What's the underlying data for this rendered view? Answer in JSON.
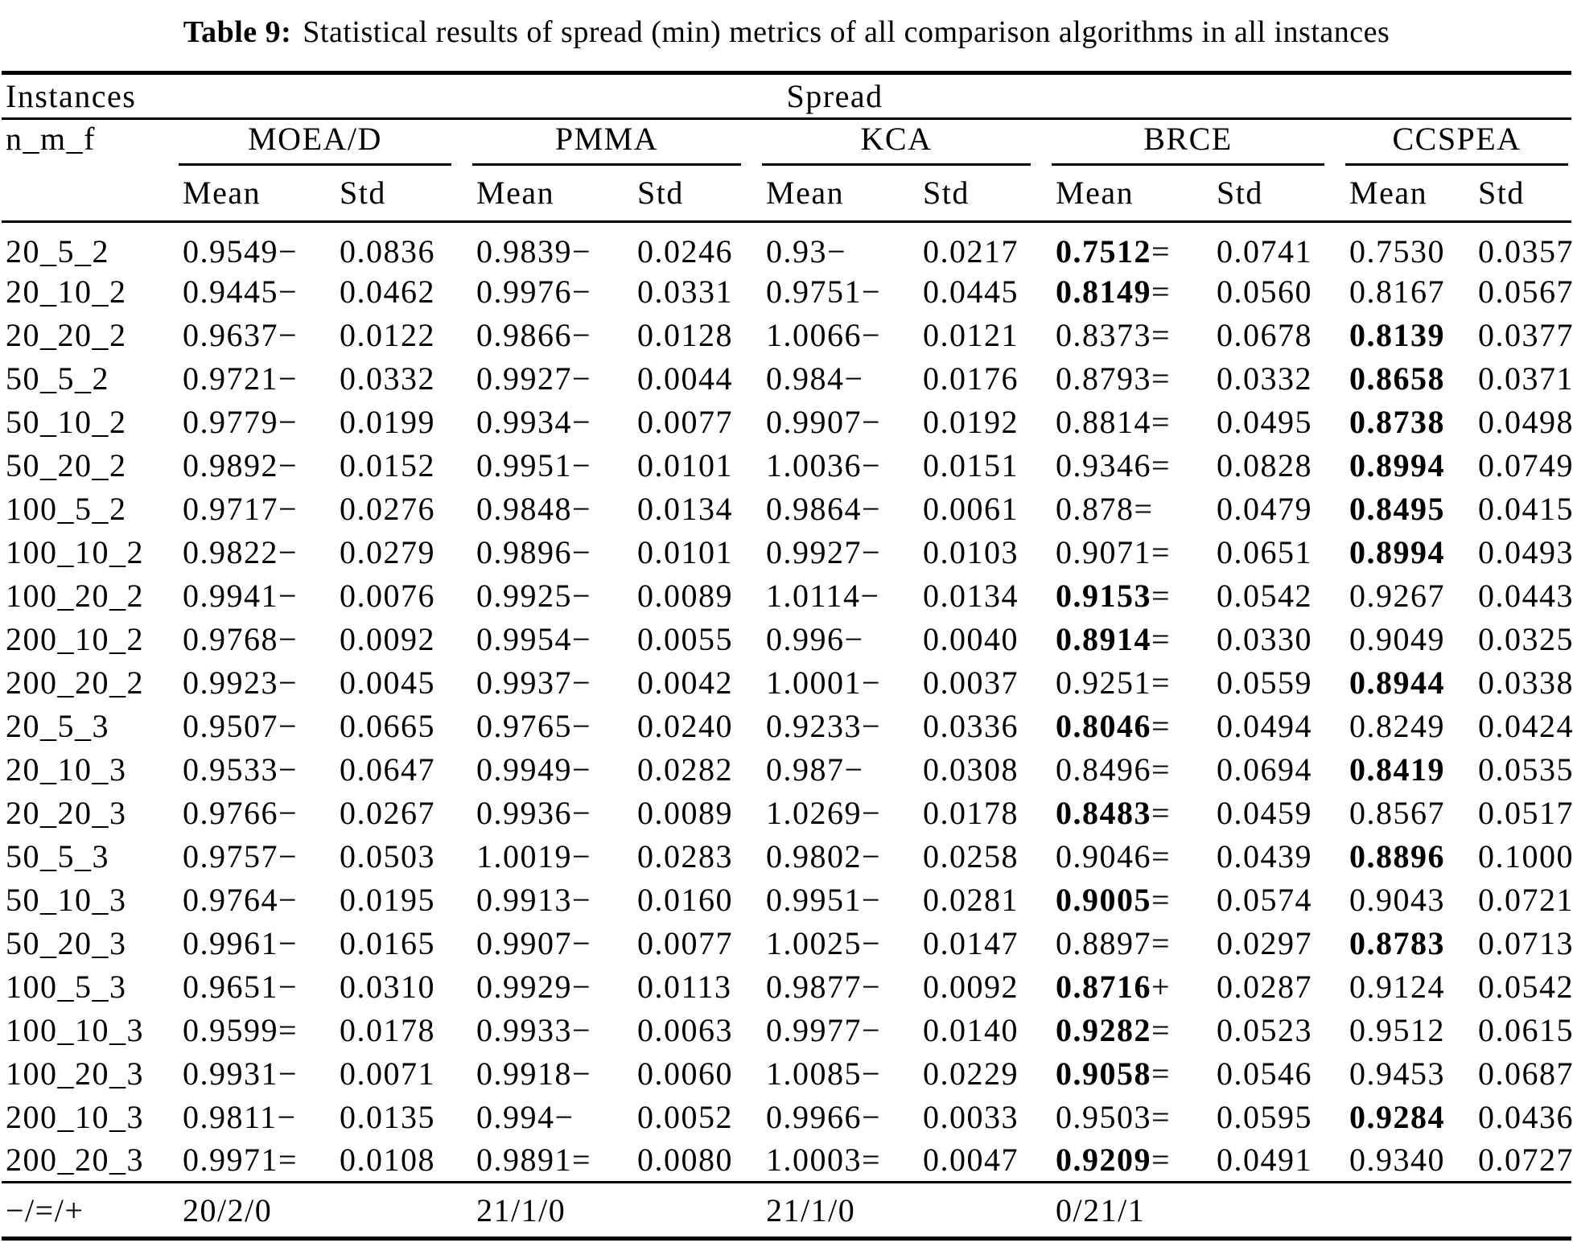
{
  "title": {
    "label": "Table 9:",
    "text": "Statistical results of spread (min) metrics of all comparison algorithms in all instances"
  },
  "table": {
    "group_header": "Spread",
    "instances_header": "Instances",
    "instances_subheader": "n_m_f",
    "algorithms": [
      "MOEA/D",
      "PMMA",
      "KCA",
      "BRCE",
      "CCSPEA"
    ],
    "measure_headers": [
      "Mean",
      "Std"
    ],
    "rows": [
      {
        "instance": "20_5_2",
        "cells": [
          {
            "mean": "0.9549",
            "sign": "−",
            "std": "0.0836",
            "bold": false
          },
          {
            "mean": "0.9839",
            "sign": "−",
            "std": "0.0246",
            "bold": false
          },
          {
            "mean": "0.93",
            "sign": "−",
            "std": "0.0217",
            "bold": false
          },
          {
            "mean": "0.7512",
            "sign": "=",
            "std": "0.0741",
            "bold": true
          },
          {
            "mean": "0.7530",
            "sign": "",
            "std": "0.0357",
            "bold": false
          }
        ]
      },
      {
        "instance": "20_10_2",
        "cells": [
          {
            "mean": "0.9445",
            "sign": "−",
            "std": "0.0462",
            "bold": false
          },
          {
            "mean": "0.9976",
            "sign": "−",
            "std": "0.0331",
            "bold": false
          },
          {
            "mean": "0.9751",
            "sign": "−",
            "std": "0.0445",
            "bold": false
          },
          {
            "mean": "0.8149",
            "sign": "=",
            "std": "0.0560",
            "bold": true
          },
          {
            "mean": "0.8167",
            "sign": "",
            "std": "0.0567",
            "bold": false
          }
        ]
      },
      {
        "instance": "20_20_2",
        "cells": [
          {
            "mean": "0.9637",
            "sign": "−",
            "std": "0.0122",
            "bold": false
          },
          {
            "mean": "0.9866",
            "sign": "−",
            "std": "0.0128",
            "bold": false
          },
          {
            "mean": "1.0066",
            "sign": "−",
            "std": "0.0121",
            "bold": false
          },
          {
            "mean": "0.8373",
            "sign": "=",
            "std": "0.0678",
            "bold": false
          },
          {
            "mean": "0.8139",
            "sign": "",
            "std": "0.0377",
            "bold": true
          }
        ]
      },
      {
        "instance": "50_5_2",
        "cells": [
          {
            "mean": "0.9721",
            "sign": "−",
            "std": "0.0332",
            "bold": false
          },
          {
            "mean": "0.9927",
            "sign": "−",
            "std": "0.0044",
            "bold": false
          },
          {
            "mean": "0.984",
            "sign": "−",
            "std": "0.0176",
            "bold": false
          },
          {
            "mean": "0.8793",
            "sign": "=",
            "std": "0.0332",
            "bold": false
          },
          {
            "mean": "0.8658",
            "sign": "",
            "std": "0.0371",
            "bold": true
          }
        ]
      },
      {
        "instance": "50_10_2",
        "cells": [
          {
            "mean": "0.9779",
            "sign": "−",
            "std": "0.0199",
            "bold": false
          },
          {
            "mean": "0.9934",
            "sign": "−",
            "std": "0.0077",
            "bold": false
          },
          {
            "mean": "0.9907",
            "sign": "−",
            "std": "0.0192",
            "bold": false
          },
          {
            "mean": "0.8814",
            "sign": "=",
            "std": "0.0495",
            "bold": false
          },
          {
            "mean": "0.8738",
            "sign": "",
            "std": "0.0498",
            "bold": true
          }
        ]
      },
      {
        "instance": "50_20_2",
        "cells": [
          {
            "mean": "0.9892",
            "sign": "−",
            "std": "0.0152",
            "bold": false
          },
          {
            "mean": "0.9951",
            "sign": "−",
            "std": "0.0101",
            "bold": false
          },
          {
            "mean": "1.0036",
            "sign": "−",
            "std": "0.0151",
            "bold": false
          },
          {
            "mean": "0.9346",
            "sign": "=",
            "std": "0.0828",
            "bold": false
          },
          {
            "mean": "0.8994",
            "sign": "",
            "std": "0.0749",
            "bold": true
          }
        ]
      },
      {
        "instance": "100_5_2",
        "cells": [
          {
            "mean": "0.9717",
            "sign": "−",
            "std": "0.0276",
            "bold": false
          },
          {
            "mean": "0.9848",
            "sign": "−",
            "std": "0.0134",
            "bold": false
          },
          {
            "mean": "0.9864",
            "sign": "−",
            "std": "0.0061",
            "bold": false
          },
          {
            "mean": "0.878",
            "sign": "=",
            "std": "0.0479",
            "bold": false
          },
          {
            "mean": "0.8495",
            "sign": "",
            "std": "0.0415",
            "bold": true
          }
        ]
      },
      {
        "instance": "100_10_2",
        "cells": [
          {
            "mean": "0.9822",
            "sign": "−",
            "std": "0.0279",
            "bold": false
          },
          {
            "mean": "0.9896",
            "sign": "−",
            "std": "0.0101",
            "bold": false
          },
          {
            "mean": "0.9927",
            "sign": "−",
            "std": "0.0103",
            "bold": false
          },
          {
            "mean": "0.9071",
            "sign": "=",
            "std": "0.0651",
            "bold": false
          },
          {
            "mean": "0.8994",
            "sign": "",
            "std": "0.0493",
            "bold": true
          }
        ]
      },
      {
        "instance": "100_20_2",
        "cells": [
          {
            "mean": "0.9941",
            "sign": "−",
            "std": "0.0076",
            "bold": false
          },
          {
            "mean": "0.9925",
            "sign": "−",
            "std": "0.0089",
            "bold": false
          },
          {
            "mean": "1.0114",
            "sign": "−",
            "std": "0.0134",
            "bold": false
          },
          {
            "mean": "0.9153",
            "sign": "=",
            "std": "0.0542",
            "bold": true
          },
          {
            "mean": "0.9267",
            "sign": "",
            "std": "0.0443",
            "bold": false
          }
        ]
      },
      {
        "instance": "200_10_2",
        "cells": [
          {
            "mean": "0.9768",
            "sign": "−",
            "std": "0.0092",
            "bold": false
          },
          {
            "mean": "0.9954",
            "sign": "−",
            "std": "0.0055",
            "bold": false
          },
          {
            "mean": "0.996",
            "sign": "−",
            "std": "0.0040",
            "bold": false
          },
          {
            "mean": "0.8914",
            "sign": "=",
            "std": "0.0330",
            "bold": true
          },
          {
            "mean": "0.9049",
            "sign": "",
            "std": "0.0325",
            "bold": false
          }
        ]
      },
      {
        "instance": "200_20_2",
        "cells": [
          {
            "mean": "0.9923",
            "sign": "−",
            "std": "0.0045",
            "bold": false
          },
          {
            "mean": "0.9937",
            "sign": "−",
            "std": "0.0042",
            "bold": false
          },
          {
            "mean": "1.0001",
            "sign": "−",
            "std": "0.0037",
            "bold": false
          },
          {
            "mean": "0.9251",
            "sign": "=",
            "std": "0.0559",
            "bold": false
          },
          {
            "mean": "0.8944",
            "sign": "",
            "std": "0.0338",
            "bold": true
          }
        ]
      },
      {
        "instance": "20_5_3",
        "cells": [
          {
            "mean": "0.9507",
            "sign": "−",
            "std": "0.0665",
            "bold": false
          },
          {
            "mean": "0.9765",
            "sign": "−",
            "std": "0.0240",
            "bold": false
          },
          {
            "mean": "0.9233",
            "sign": "−",
            "std": "0.0336",
            "bold": false
          },
          {
            "mean": "0.8046",
            "sign": "=",
            "std": "0.0494",
            "bold": true
          },
          {
            "mean": "0.8249",
            "sign": "",
            "std": "0.0424",
            "bold": false
          }
        ]
      },
      {
        "instance": "20_10_3",
        "cells": [
          {
            "mean": "0.9533",
            "sign": "−",
            "std": "0.0647",
            "bold": false
          },
          {
            "mean": "0.9949",
            "sign": "−",
            "std": "0.0282",
            "bold": false
          },
          {
            "mean": "0.987",
            "sign": "−",
            "std": "0.0308",
            "bold": false
          },
          {
            "mean": "0.8496",
            "sign": "=",
            "std": "0.0694",
            "bold": false
          },
          {
            "mean": "0.8419",
            "sign": "",
            "std": "0.0535",
            "bold": true
          }
        ]
      },
      {
        "instance": "20_20_3",
        "cells": [
          {
            "mean": "0.9766",
            "sign": "−",
            "std": "0.0267",
            "bold": false
          },
          {
            "mean": "0.9936",
            "sign": "−",
            "std": "0.0089",
            "bold": false
          },
          {
            "mean": "1.0269",
            "sign": "−",
            "std": "0.0178",
            "bold": false
          },
          {
            "mean": "0.8483",
            "sign": "=",
            "std": "0.0459",
            "bold": true
          },
          {
            "mean": "0.8567",
            "sign": "",
            "std": "0.0517",
            "bold": false
          }
        ]
      },
      {
        "instance": "50_5_3",
        "cells": [
          {
            "mean": "0.9757",
            "sign": "−",
            "std": "0.0503",
            "bold": false
          },
          {
            "mean": "1.0019",
            "sign": "−",
            "std": "0.0283",
            "bold": false
          },
          {
            "mean": "0.9802",
            "sign": "−",
            "std": "0.0258",
            "bold": false
          },
          {
            "mean": "0.9046",
            "sign": "=",
            "std": "0.0439",
            "bold": false
          },
          {
            "mean": "0.8896",
            "sign": "",
            "std": "0.1000",
            "bold": true
          }
        ]
      },
      {
        "instance": "50_10_3",
        "cells": [
          {
            "mean": "0.9764",
            "sign": "−",
            "std": "0.0195",
            "bold": false
          },
          {
            "mean": "0.9913",
            "sign": "−",
            "std": "0.0160",
            "bold": false
          },
          {
            "mean": "0.9951",
            "sign": "−",
            "std": "0.0281",
            "bold": false
          },
          {
            "mean": "0.9005",
            "sign": "=",
            "std": "0.0574",
            "bold": true
          },
          {
            "mean": "0.9043",
            "sign": "",
            "std": "0.0721",
            "bold": false
          }
        ]
      },
      {
        "instance": "50_20_3",
        "cells": [
          {
            "mean": "0.9961",
            "sign": "−",
            "std": "0.0165",
            "bold": false
          },
          {
            "mean": "0.9907",
            "sign": "−",
            "std": "0.0077",
            "bold": false
          },
          {
            "mean": "1.0025",
            "sign": "−",
            "std": "0.0147",
            "bold": false
          },
          {
            "mean": "0.8897",
            "sign": "=",
            "std": "0.0297",
            "bold": false
          },
          {
            "mean": "0.8783",
            "sign": "",
            "std": "0.0713",
            "bold": true
          }
        ]
      },
      {
        "instance": "100_5_3",
        "cells": [
          {
            "mean": "0.9651",
            "sign": "−",
            "std": "0.0310",
            "bold": false
          },
          {
            "mean": "0.9929",
            "sign": "−",
            "std": "0.0113",
            "bold": false
          },
          {
            "mean": "0.9877",
            "sign": "−",
            "std": "0.0092",
            "bold": false
          },
          {
            "mean": "0.8716",
            "sign": "+",
            "std": "0.0287",
            "bold": true
          },
          {
            "mean": "0.9124",
            "sign": "",
            "std": "0.0542",
            "bold": false
          }
        ]
      },
      {
        "instance": "100_10_3",
        "cells": [
          {
            "mean": "0.9599",
            "sign": "=",
            "std": "0.0178",
            "bold": false
          },
          {
            "mean": "0.9933",
            "sign": "−",
            "std": "0.0063",
            "bold": false
          },
          {
            "mean": "0.9977",
            "sign": "−",
            "std": "0.0140",
            "bold": false
          },
          {
            "mean": "0.9282",
            "sign": "=",
            "std": "0.0523",
            "bold": true
          },
          {
            "mean": "0.9512",
            "sign": "",
            "std": "0.0615",
            "bold": false
          }
        ]
      },
      {
        "instance": "100_20_3",
        "cells": [
          {
            "mean": "0.9931",
            "sign": "−",
            "std": "0.0071",
            "bold": false
          },
          {
            "mean": "0.9918",
            "sign": "−",
            "std": "0.0060",
            "bold": false
          },
          {
            "mean": "1.0085",
            "sign": "−",
            "std": "0.0229",
            "bold": false
          },
          {
            "mean": "0.9058",
            "sign": "=",
            "std": "0.0546",
            "bold": true
          },
          {
            "mean": "0.9453",
            "sign": "",
            "std": "0.0687",
            "bold": false
          }
        ]
      },
      {
        "instance": "200_10_3",
        "cells": [
          {
            "mean": "0.9811",
            "sign": "−",
            "std": "0.0135",
            "bold": false
          },
          {
            "mean": "0.994",
            "sign": "−",
            "std": "0.0052",
            "bold": false
          },
          {
            "mean": "0.9966",
            "sign": "−",
            "std": "0.0033",
            "bold": false
          },
          {
            "mean": "0.9503",
            "sign": "=",
            "std": "0.0595",
            "bold": false
          },
          {
            "mean": "0.9284",
            "sign": "",
            "std": "0.0436",
            "bold": true
          }
        ]
      },
      {
        "instance": "200_20_3",
        "cells": [
          {
            "mean": "0.9971",
            "sign": "=",
            "std": "0.0108",
            "bold": false
          },
          {
            "mean": "0.9891",
            "sign": "=",
            "std": "0.0080",
            "bold": false
          },
          {
            "mean": "1.0003",
            "sign": "=",
            "std": "0.0047",
            "bold": false
          },
          {
            "mean": "0.9209",
            "sign": "=",
            "std": "0.0491",
            "bold": true
          },
          {
            "mean": "0.9340",
            "sign": "",
            "std": "0.0727",
            "bold": false
          }
        ]
      }
    ],
    "footer": {
      "label": "−/=/+",
      "values": [
        "20/2/0",
        "21/1/0",
        "21/1/0",
        "0/21/1",
        ""
      ]
    }
  }
}
